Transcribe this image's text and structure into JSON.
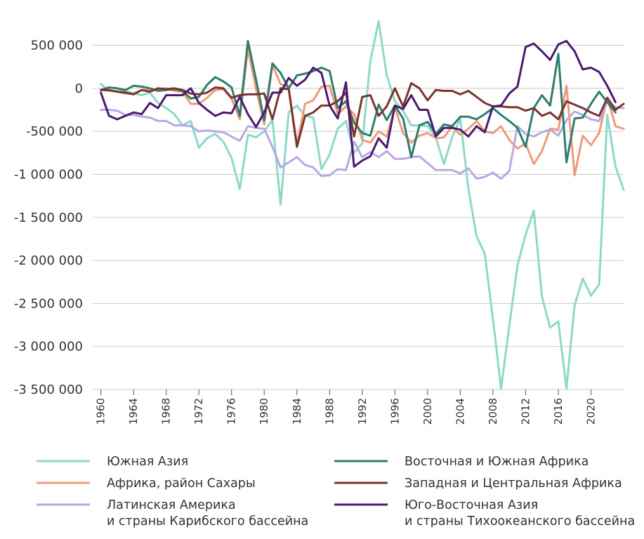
{
  "chart_data": {
    "type": "line",
    "title": "",
    "xlabel": "",
    "ylabel": "",
    "xlim": [
      1959,
      2024
    ],
    "ylim": [
      -3500000,
      700000
    ],
    "y_ticks": [
      {
        "value": 500000,
        "label": "500 000"
      },
      {
        "value": 0,
        "label": "0"
      },
      {
        "value": -500000,
        "label": "-500 000"
      },
      {
        "value": -1000000,
        "label": "-1 000 000"
      },
      {
        "value": -1500000,
        "label": "-1 500 000"
      },
      {
        "value": -2000000,
        "label": "-2 000 000"
      },
      {
        "value": -2500000,
        "label": "-2 500 000"
      },
      {
        "value": -3000000,
        "label": "-3 000 000"
      },
      {
        "value": -3500000,
        "label": "-3 500 000"
      }
    ],
    "x_ticks": [
      {
        "value": 1960,
        "label": "1960"
      },
      {
        "value": 1964,
        "label": "1964"
      },
      {
        "value": 1968,
        "label": "1968"
      },
      {
        "value": 1972,
        "label": "1972"
      },
      {
        "value": 1976,
        "label": "1976"
      },
      {
        "value": 1980,
        "label": "1980"
      },
      {
        "value": 1984,
        "label": "1984"
      },
      {
        "value": 1988,
        "label": "1988"
      },
      {
        "value": 1992,
        "label": "1992"
      },
      {
        "value": 1996,
        "label": "1996"
      },
      {
        "value": 2000,
        "label": "2000"
      },
      {
        "value": 2004,
        "label": "2004"
      },
      {
        "value": 2008,
        "label": "2008"
      },
      {
        "value": 2012,
        "label": "2012"
      },
      {
        "value": 2016,
        "label": "2016"
      },
      {
        "value": 2020,
        "label": "2020"
      }
    ],
    "grid": "horizontal",
    "legend_position": "bottom",
    "x_start": 1960,
    "series": [
      {
        "name": "Южная Азия",
        "color": "#8dd9c8",
        "values": [
          50000,
          -30000,
          -30000,
          -30000,
          -60000,
          -80000,
          -50000,
          -170000,
          -230000,
          -300000,
          -430000,
          -380000,
          -690000,
          -580000,
          -530000,
          -620000,
          -810000,
          -1170000,
          -540000,
          -570000,
          -500000,
          -370000,
          -1350000,
          -280000,
          -200000,
          -320000,
          -340000,
          -940000,
          -770000,
          -470000,
          -380000,
          -750000,
          -640000,
          320000,
          780000,
          150000,
          -150000,
          -260000,
          -430000,
          -430000,
          -440000,
          -570000,
          -880000,
          -570000,
          -350000,
          -1170000,
          -1720000,
          -1920000,
          -2680000,
          -3490000,
          -2760000,
          -2060000,
          -1700000,
          -1420000,
          -2420000,
          -2780000,
          -2710000,
          -3490000,
          -2520000,
          -2210000,
          -2410000,
          -2280000,
          -310000,
          -910000,
          -1180000
        ]
      },
      {
        "name": "Африка, район Сахары",
        "color": "#f09a7a",
        "values": [
          -20000,
          -30000,
          -40000,
          -60000,
          -60000,
          -20000,
          -20000,
          -10000,
          0,
          -30000,
          -40000,
          -180000,
          -180000,
          -110000,
          -20000,
          -10000,
          -120000,
          -360000,
          460000,
          -10000,
          -420000,
          270000,
          50000,
          10000,
          -650000,
          -180000,
          -140000,
          20000,
          30000,
          -300000,
          -210000,
          -300000,
          -600000,
          -630000,
          -500000,
          -560000,
          -220000,
          -520000,
          -630000,
          -550000,
          -520000,
          -580000,
          -570000,
          -440000,
          -540000,
          -470000,
          -380000,
          -500000,
          -520000,
          -440000,
          -600000,
          -700000,
          -640000,
          -880000,
          -730000,
          -470000,
          -480000,
          30000,
          -1010000,
          -550000,
          -660000,
          -520000,
          -110000,
          -440000,
          -470000
        ]
      },
      {
        "name": "Латинская Америка и страны Карибского бассейна",
        "color": "#b8a9e3",
        "values": [
          -250000,
          -250000,
          -260000,
          -310000,
          -310000,
          -330000,
          -340000,
          -380000,
          -380000,
          -430000,
          -430000,
          -440000,
          -500000,
          -490000,
          -500000,
          -510000,
          -560000,
          -610000,
          -440000,
          -460000,
          -470000,
          -680000,
          -920000,
          -860000,
          -800000,
          -890000,
          -920000,
          -1020000,
          -1010000,
          -940000,
          -950000,
          -620000,
          -800000,
          -740000,
          -800000,
          -730000,
          -820000,
          -820000,
          -800000,
          -790000,
          -870000,
          -950000,
          -950000,
          -950000,
          -990000,
          -930000,
          -1050000,
          -1030000,
          -980000,
          -1050000,
          -960000,
          -440000,
          -530000,
          -560000,
          -510000,
          -480000,
          -550000,
          -370000,
          -270000,
          -310000,
          -360000,
          -380000,
          -150000,
          -220000,
          -230000
        ]
      },
      {
        "name": "Восточная и Южная Африка",
        "color": "#2e7d6e",
        "values": [
          -20000,
          10000,
          0,
          -20000,
          30000,
          20000,
          0,
          -30000,
          -20000,
          -10000,
          -30000,
          -120000,
          -100000,
          40000,
          130000,
          80000,
          10000,
          -320000,
          550000,
          100000,
          -370000,
          290000,
          180000,
          0,
          150000,
          170000,
          200000,
          240000,
          200000,
          -230000,
          -150000,
          -400000,
          -520000,
          -550000,
          -190000,
          -370000,
          -200000,
          -350000,
          -800000,
          -430000,
          -390000,
          -530000,
          -420000,
          -440000,
          -330000,
          -330000,
          -360000,
          -300000,
          -230000,
          -310000,
          -380000,
          -460000,
          -680000,
          -230000,
          -80000,
          -200000,
          400000,
          -860000,
          -350000,
          -340000,
          -180000,
          -40000,
          -160000,
          -280000
        ]
      },
      {
        "name": "Западная и Центральная Африка",
        "color": "#7a3530",
        "values": [
          -20000,
          -20000,
          -40000,
          -50000,
          -70000,
          -20000,
          -40000,
          0,
          -10000,
          0,
          -20000,
          -60000,
          -70000,
          -50000,
          10000,
          0,
          -110000,
          -80000,
          -70000,
          -70000,
          -60000,
          -360000,
          0,
          -10000,
          -680000,
          -320000,
          -280000,
          -200000,
          -200000,
          -150000,
          -50000,
          -560000,
          -100000,
          -80000,
          -320000,
          -210000,
          0,
          -210000,
          60000,
          0,
          -140000,
          -20000,
          -30000,
          -30000,
          -70000,
          -30000,
          -100000,
          -170000,
          -210000,
          -210000,
          -220000,
          -220000,
          -260000,
          -230000,
          -320000,
          -280000,
          -360000,
          -150000,
          -190000,
          -230000,
          -280000,
          -320000,
          -110000,
          -250000,
          -180000
        ]
      },
      {
        "name": "Юго-Восточная Азия и страны Тихоокеанского бассейна",
        "color": "#4b1a6e",
        "values": [
          -50000,
          -320000,
          -360000,
          -320000,
          -280000,
          -300000,
          -170000,
          -230000,
          -80000,
          -80000,
          -80000,
          0,
          -170000,
          -250000,
          -320000,
          -280000,
          -290000,
          -100000,
          -300000,
          -450000,
          -280000,
          -50000,
          -50000,
          120000,
          30000,
          100000,
          240000,
          180000,
          -200000,
          -350000,
          70000,
          -910000,
          -840000,
          -790000,
          -580000,
          -690000,
          -200000,
          -240000,
          -80000,
          -250000,
          -250000,
          -560000,
          -460000,
          -460000,
          -480000,
          -560000,
          -440000,
          -510000,
          -210000,
          -200000,
          -60000,
          20000,
          480000,
          520000,
          430000,
          330000,
          510000,
          550000,
          430000,
          220000,
          240000,
          190000,
          30000,
          -160000
        ]
      }
    ]
  },
  "legend": {
    "items": [
      {
        "label1": "Южная Азия",
        "label2": ""
      },
      {
        "label1": "Восточная и Южная Африка",
        "label2": ""
      },
      {
        "label1": "Африка, район Сахары",
        "label2": ""
      },
      {
        "label1": "Западная и Центральная Африка",
        "label2": ""
      },
      {
        "label1": "Латинская Америка",
        "label2": "и страны Карибского бассейна"
      },
      {
        "label1": "Юго-Восточная Азия",
        "label2": "и страны Тихоокеанского бассейна"
      }
    ]
  }
}
